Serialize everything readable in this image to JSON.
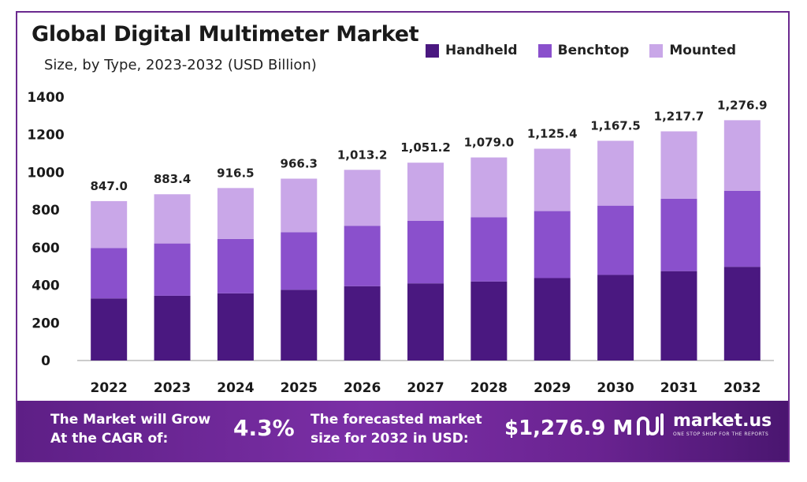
{
  "title": "Global Digital Multimeter Market",
  "subtitle": "Size, by Type, 2023-2032 (USD Billion)",
  "colors": {
    "handheld": "#4a1880",
    "benchtop": "#8a50cc",
    "mounted": "#c9a7e8",
    "banner": "#6a2391"
  },
  "banner": {
    "cagr_label_line1": "The Market will Grow",
    "cagr_label_line2": "At the CAGR of:",
    "cagr_value": "4.3%",
    "forecast_label_line1": "The forecasted market",
    "forecast_label_line2": "size for 2032 in USD:",
    "forecast_value": "$1,276.9 M",
    "brand": "market.us",
    "brand_tagline": "ONE STOP SHOP FOR THE REPORTS"
  },
  "chart_data": {
    "type": "bar",
    "stacked": true,
    "title": "Global Digital Multimeter Market",
    "subtitle": "Size, by Type, 2023-2032 (USD Billion)",
    "categories": [
      "2022",
      "2023",
      "2024",
      "2025",
      "2026",
      "2027",
      "2028",
      "2029",
      "2030",
      "2031",
      "2032"
    ],
    "series": [
      {
        "name": "Handheld",
        "values": [
          330,
          344,
          357,
          376,
          395,
          410,
          420,
          438,
          455,
          475,
          498
        ]
      },
      {
        "name": "Benchtop",
        "values": [
          268,
          278,
          289,
          306,
          321,
          332,
          341,
          356,
          368,
          385,
          404
        ]
      },
      {
        "name": "Mounted",
        "values": [
          249,
          261.4,
          270.5,
          284.3,
          297.2,
          309.2,
          318,
          331.4,
          344.5,
          357.7,
          374.9
        ]
      }
    ],
    "totals": [
      847.0,
      883.4,
      916.5,
      966.3,
      1013.2,
      1051.2,
      1079.0,
      1125.4,
      1167.5,
      1217.7,
      1276.9
    ],
    "total_labels": [
      "847.0",
      "883.4",
      "916.5",
      "966.3",
      "1,013.2",
      "1,051.2",
      "1,079.0",
      "1,125.4",
      "1,167.5",
      "1,217.7",
      "1,276.9"
    ],
    "yticks": [
      0,
      200,
      400,
      600,
      800,
      1000,
      1200,
      1400
    ],
    "ylim": [
      0,
      1400
    ],
    "xlabel": "",
    "ylabel": "",
    "legend": "top-right"
  }
}
